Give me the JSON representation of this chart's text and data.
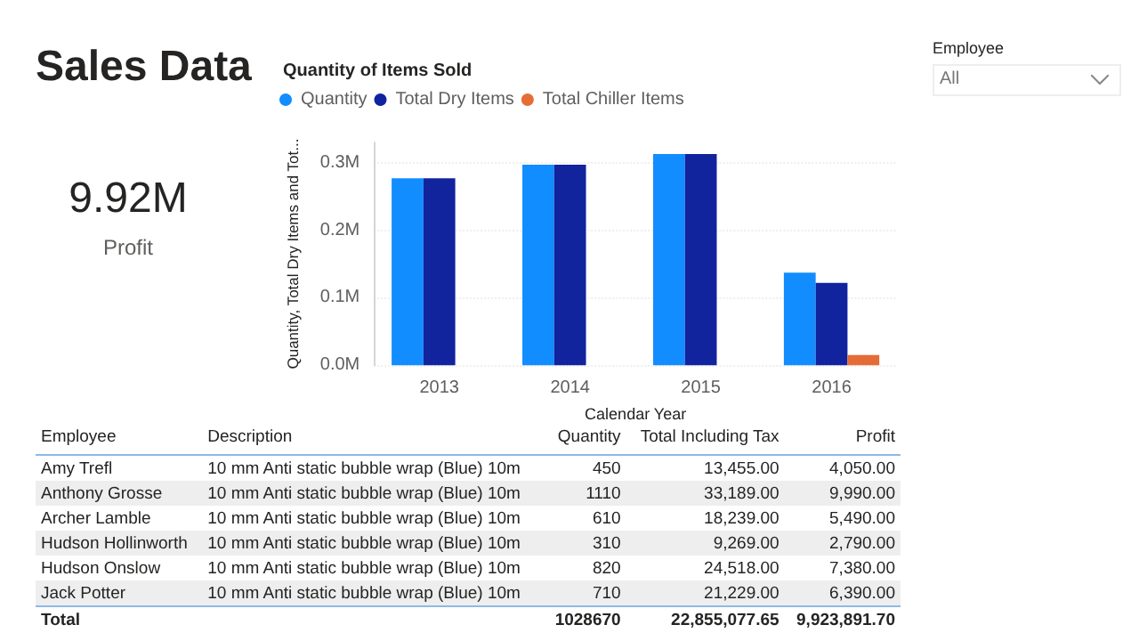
{
  "chart_data": [
    {
      "type": "other",
      "title": "Sales Data",
      "annotations": [
        "9.92M",
        "Profit"
      ]
    },
    {
      "type": "bar",
      "title": "Quantity of Items Sold",
      "xlabel": "Calendar Year",
      "ylabel": "Quantity, Total Dry Items and Tot...",
      "categories": [
        "2013",
        "2014",
        "2015",
        "2016"
      ],
      "series": [
        {
          "name": "Quantity",
          "color": "#118dff",
          "values": [
            0.277,
            0.297,
            0.313,
            0.137
          ]
        },
        {
          "name": "Total Dry Items",
          "color": "#12239e",
          "values": [
            0.277,
            0.297,
            0.313,
            0.122
          ]
        },
        {
          "name": "Total Chiller Items",
          "color": "#e66c37",
          "values": [
            null,
            null,
            null,
            0.015
          ]
        }
      ],
      "ylim": [
        0,
        0.33
      ],
      "yticks": [
        {
          "value": 0,
          "label": "0.0M"
        },
        {
          "value": 0.1,
          "label": "0.1M"
        },
        {
          "value": 0.2,
          "label": "0.2M"
        },
        {
          "value": 0.3,
          "label": "0.3M"
        }
      ],
      "grid": "y",
      "legend": "top left",
      "marker": "circle"
    },
    {
      "type": "other",
      "title": "Employee",
      "annotations": [
        "All"
      ]
    },
    {
      "type": "other",
      "categories": [
        "Employee",
        "Description",
        "Quantity",
        "Total Including Tax",
        "Profit"
      ],
      "cell_labels": [
        [
          "Amy Trefl",
          "10 mm Anti static bubble wrap (Blue) 10m",
          "450",
          "13,455.00",
          "4,050.00"
        ],
        [
          "Anthony Grosse",
          "10 mm Anti static bubble wrap (Blue) 10m",
          "1110",
          "33,189.00",
          "9,990.00"
        ],
        [
          "Archer Lamble",
          "10 mm Anti static bubble wrap (Blue) 10m",
          "610",
          "18,239.00",
          "5,490.00"
        ],
        [
          "Hudson Hollinworth",
          "10 mm Anti static bubble wrap (Blue) 10m",
          "310",
          "9,269.00",
          "2,790.00"
        ],
        [
          "Hudson Onslow",
          "10 mm Anti static bubble wrap (Blue) 10m",
          "820",
          "24,518.00",
          "7,380.00"
        ],
        [
          "Jack Potter",
          "10 mm Anti static bubble wrap (Blue) 10m",
          "710",
          "21,229.00",
          "6,390.00"
        ],
        [
          "Total",
          null,
          "1028670",
          "22,855,077.65",
          "9,923,891.70"
        ]
      ]
    }
  ]
}
